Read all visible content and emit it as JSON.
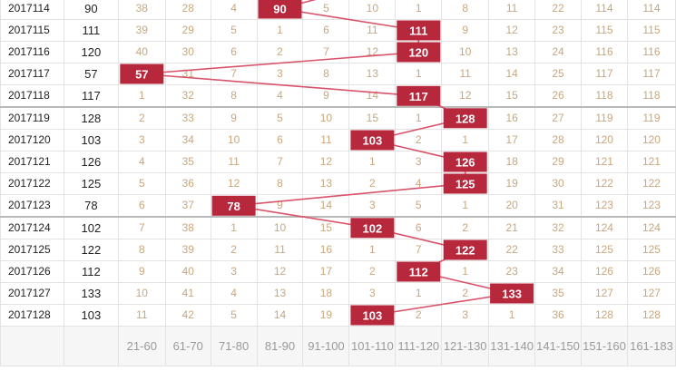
{
  "colors": {
    "hit": "#b8283c",
    "line": "#d9536a",
    "cell_text": "#c8a77f",
    "issue_text": "#222222",
    "footer_text": "#9a9a9a"
  },
  "chart_data": {
    "type": "table",
    "title": "",
    "xlabel": "",
    "ylabel": "",
    "columns": [
      "21-60",
      "61-70",
      "71-80",
      "81-90",
      "91-100",
      "101-110",
      "111-120",
      "121-130",
      "131-140",
      "141-150",
      "151-160",
      "161-183"
    ],
    "rows": [
      {
        "issue": "2017114",
        "value": "90",
        "cells": [
          "38",
          "28",
          "4",
          "90",
          "5",
          "10",
          "1",
          "8",
          "11",
          "22",
          "114",
          "114"
        ],
        "hit": 3
      },
      {
        "issue": "2017115",
        "value": "111",
        "cells": [
          "39",
          "29",
          "5",
          "1",
          "6",
          "11",
          "111",
          "9",
          "12",
          "23",
          "115",
          "115"
        ],
        "hit": 6
      },
      {
        "issue": "2017116",
        "value": "120",
        "cells": [
          "40",
          "30",
          "6",
          "2",
          "7",
          "12",
          "120",
          "10",
          "13",
          "24",
          "116",
          "116"
        ],
        "hit": 6
      },
      {
        "issue": "2017117",
        "value": "57",
        "cells": [
          "57",
          "31",
          "7",
          "3",
          "8",
          "13",
          "1",
          "11",
          "14",
          "25",
          "117",
          "117"
        ],
        "hit": 0
      },
      {
        "issue": "2017118",
        "value": "117",
        "cells": [
          "1",
          "32",
          "8",
          "4",
          "9",
          "14",
          "117",
          "12",
          "15",
          "26",
          "118",
          "118"
        ],
        "hit": 6
      },
      {
        "issue": "2017119",
        "value": "128",
        "cells": [
          "2",
          "33",
          "9",
          "5",
          "10",
          "15",
          "1",
          "128",
          "16",
          "27",
          "119",
          "119"
        ],
        "hit": 7
      },
      {
        "issue": "2017120",
        "value": "103",
        "cells": [
          "3",
          "34",
          "10",
          "6",
          "11",
          "103",
          "2",
          "1",
          "17",
          "28",
          "120",
          "120"
        ],
        "hit": 5
      },
      {
        "issue": "2017121",
        "value": "126",
        "cells": [
          "4",
          "35",
          "11",
          "7",
          "12",
          "1",
          "3",
          "126",
          "18",
          "29",
          "121",
          "121"
        ],
        "hit": 7
      },
      {
        "issue": "2017122",
        "value": "125",
        "cells": [
          "5",
          "36",
          "12",
          "8",
          "13",
          "2",
          "4",
          "125",
          "19",
          "30",
          "122",
          "122"
        ],
        "hit": 7
      },
      {
        "issue": "2017123",
        "value": "78",
        "cells": [
          "6",
          "37",
          "78",
          "9",
          "14",
          "3",
          "5",
          "1",
          "20",
          "31",
          "123",
          "123"
        ],
        "hit": 2
      },
      {
        "issue": "2017124",
        "value": "102",
        "cells": [
          "7",
          "38",
          "1",
          "10",
          "15",
          "102",
          "6",
          "2",
          "21",
          "32",
          "124",
          "124"
        ],
        "hit": 5
      },
      {
        "issue": "2017125",
        "value": "122",
        "cells": [
          "8",
          "39",
          "2",
          "11",
          "16",
          "1",
          "7",
          "122",
          "22",
          "33",
          "125",
          "125"
        ],
        "hit": 7
      },
      {
        "issue": "2017126",
        "value": "112",
        "cells": [
          "9",
          "40",
          "3",
          "12",
          "17",
          "2",
          "112",
          "1",
          "23",
          "34",
          "126",
          "126"
        ],
        "hit": 6
      },
      {
        "issue": "2017127",
        "value": "133",
        "cells": [
          "10",
          "41",
          "4",
          "13",
          "18",
          "3",
          "1",
          "2",
          "133",
          "35",
          "127",
          "127"
        ],
        "hit": 8
      },
      {
        "issue": "2017128",
        "value": "103",
        "cells": [
          "11",
          "42",
          "5",
          "14",
          "19",
          "103",
          "2",
          "3",
          "1",
          "36",
          "128",
          "128"
        ],
        "hit": 5
      }
    ],
    "group_starts": [
      5,
      10
    ]
  }
}
